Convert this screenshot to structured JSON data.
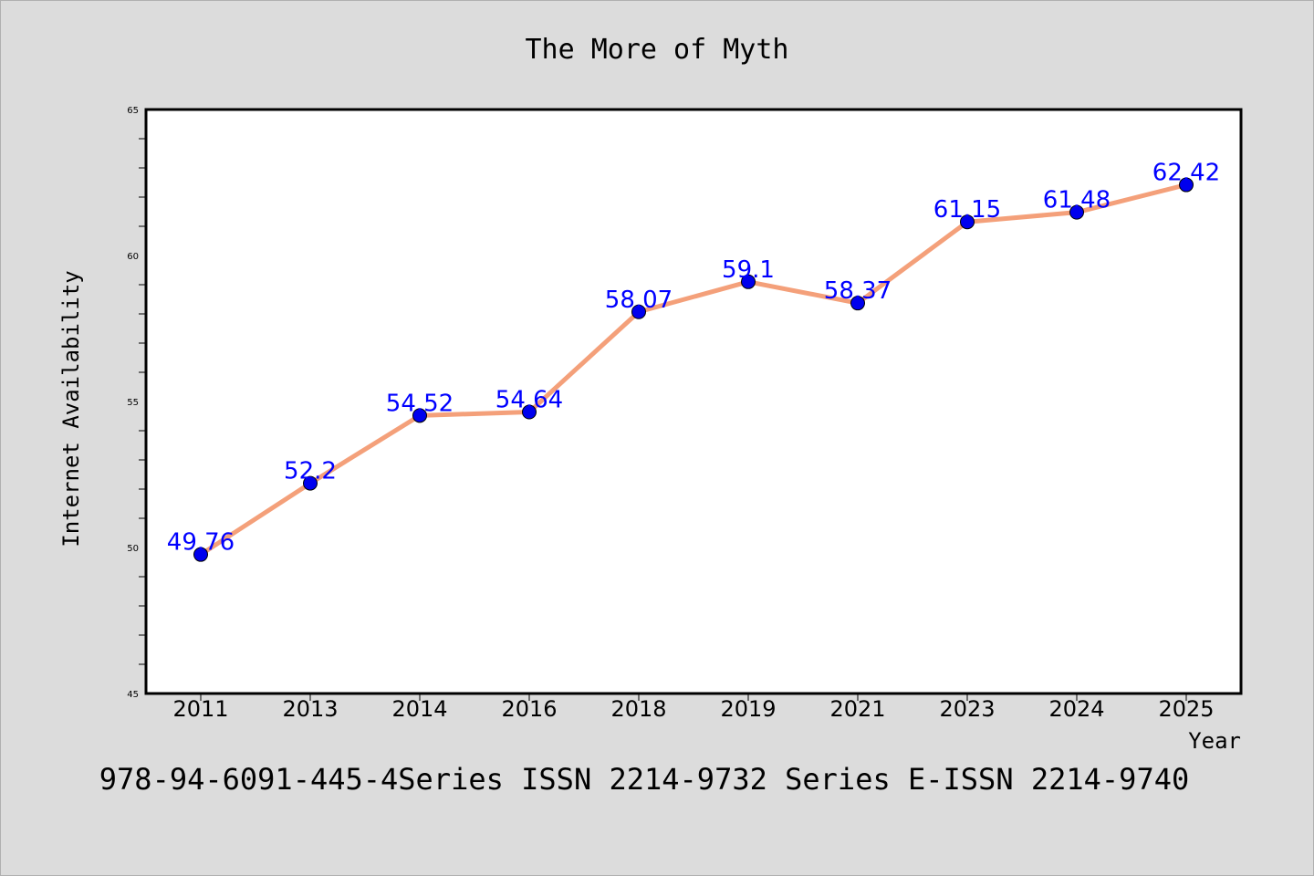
{
  "chart_data": {
    "type": "line",
    "title": "The More of Myth",
    "xlabel": "Year",
    "ylabel": "Internet Availability",
    "categories": [
      "2011",
      "2013",
      "2014",
      "2016",
      "2018",
      "2019",
      "2021",
      "2023",
      "2024",
      "2025"
    ],
    "series": [
      {
        "values": [
          49.76,
          52.2,
          54.52,
          54.64,
          58.07,
          59.1,
          58.37,
          61.15,
          61.48,
          62.42
        ],
        "labels": [
          "49.76",
          "52.2",
          "54.52",
          "54.64",
          "58.07",
          "59.1",
          "58.37",
          "61.15",
          "61.48",
          "62.42"
        ],
        "line_color": "#f4a07a",
        "marker_color": "#0000ee",
        "label_color": "#0000ff"
      }
    ],
    "ylim": [
      45,
      65
    ],
    "y_ticks": [
      "45",
      "50",
      "55",
      "60",
      "65"
    ],
    "grid": false,
    "legend": "none"
  },
  "footer": {
    "text": "978-94-6091-445-4Series ISSN 2214-9732 Series E-ISSN 2214-9740"
  },
  "colors": {
    "background": "#dcdcdc",
    "plot_background": "#ffffff"
  }
}
